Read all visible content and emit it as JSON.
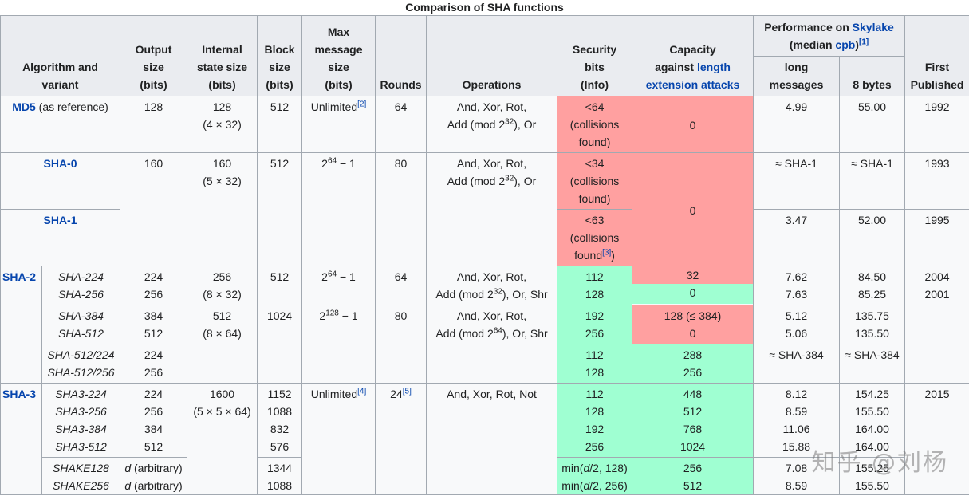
{
  "caption": "Comparison of SHA functions",
  "headers": {
    "alg_line1": "Algorithm and",
    "alg_line2": "variant",
    "out_line1": "Output",
    "out_line2": "size",
    "out_line3": "(bits)",
    "int_line1": "Internal",
    "int_line2": "state size",
    "int_line3": "(bits)",
    "blk_line1": "Block",
    "blk_line2": "size",
    "blk_line3": "(bits)",
    "max_line1": "Max",
    "max_line2": "message",
    "max_line3": "size",
    "max_line4": "(bits)",
    "rounds": "Rounds",
    "operations": "Operations",
    "sec_line1": "Security",
    "sec_line2": "bits",
    "sec_line3": "(Info)",
    "cap_line1": "Capacity",
    "cap_line2_pre": "against ",
    "cap_line2_link": "length",
    "cap_line3_link": "extension attacks",
    "perf_pre": "Performance on ",
    "perf_link": "Skylake",
    "perf_line2_pre": "(median ",
    "perf_line2_link": "cpb",
    "perf_line2_post": ")",
    "perf_ref": "[1]",
    "long_line1": "long",
    "long_line2": "messages",
    "bytes8": "8 bytes",
    "first_line1": "First",
    "first_line2": "Published"
  },
  "md5": {
    "name": "MD5",
    "note": " (as reference)",
    "out": "128",
    "int1": "128",
    "int2": "(4 × 32)",
    "blk": "512",
    "max": "Unlimited",
    "max_ref": "[2]",
    "rounds": "64",
    "ops1": "And, Xor, Rot,",
    "ops2_pre": "Add (mod 2",
    "ops2_sup": "32",
    "ops2_post": "), Or",
    "sec1": "<64",
    "sec2": "(collisions",
    "sec3": "found)",
    "cap": "0",
    "long": "4.99",
    "b8": "55.00",
    "year": "1992"
  },
  "sha0": {
    "name": "SHA-0",
    "out": "160",
    "int1": "160",
    "int2": "(5 × 32)",
    "blk": "512",
    "max_base": "2",
    "max_sup": "64",
    "max_post": " − 1",
    "rounds": "80",
    "ops1": "And, Xor, Rot,",
    "ops2_pre": "Add (mod 2",
    "ops2_sup": "32",
    "ops2_post": "), Or",
    "sec1": "<34",
    "sec2": "(collisions",
    "sec3": "found)",
    "cap": "0",
    "long": "≈ SHA-1",
    "b8": "≈ SHA-1",
    "year": "1993"
  },
  "sha1": {
    "name": "SHA-1",
    "sec1": "<63",
    "sec2": "(collisions",
    "sec3": "found",
    "sec_ref": "[3]",
    "sec3_post": ")",
    "long": "3.47",
    "b8": "52.00",
    "year": "1995"
  },
  "sha2": {
    "family": "SHA-2",
    "g1": {
      "v1": "SHA-224",
      "v2": "SHA-256",
      "out1": "224",
      "out2": "256",
      "int1": "256",
      "int2": "(8 × 32)",
      "blk": "512",
      "max_base": "2",
      "max_sup": "64",
      "max_post": " − 1",
      "rounds": "64",
      "ops1": "And, Xor, Rot,",
      "ops2_pre": "Add (mod 2",
      "ops2_sup": "32",
      "ops2_post": "), Or, Shr",
      "sec1": "112",
      "sec2": "128",
      "cap1": "32",
      "cap2": "0",
      "long1": "7.62",
      "long2": "7.63",
      "b81": "84.50",
      "b82": "85.25",
      "year1": "2004",
      "year2": "2001"
    },
    "g2": {
      "v1": "SHA-384",
      "v2": "SHA-512",
      "out1": "384",
      "out2": "512",
      "int1": "512",
      "int2": "(8 × 64)",
      "blk": "1024",
      "max_base": "2",
      "max_sup": "128",
      "max_post": " − 1",
      "rounds": "80",
      "ops1": "And, Xor, Rot,",
      "ops2_pre": "Add (mod 2",
      "ops2_sup": "64",
      "ops2_post": "), Or, Shr",
      "sec1": "192",
      "sec2": "256",
      "cap1": "128 (≤ 384)",
      "cap2": "0",
      "long1": "5.12",
      "long2": "5.06",
      "b81": "135.75",
      "b82": "135.50"
    },
    "g3": {
      "v1": "SHA-512/224",
      "v2": "SHA-512/256",
      "out1": "224",
      "out2": "256",
      "sec1": "112",
      "sec2": "128",
      "cap1": "288",
      "cap2": "256",
      "long": "≈ SHA-384",
      "b8": "≈ SHA-384"
    }
  },
  "sha3": {
    "family": "SHA-3",
    "g1": {
      "v1": "SHA3-224",
      "v2": "SHA3-256",
      "v3": "SHA3-384",
      "v4": "SHA3-512",
      "out1": "224",
      "out2": "256",
      "out3": "384",
      "out4": "512",
      "int1": "1600",
      "int2": "(5 × 5 × 64)",
      "blk1": "1152",
      "blk2": "1088",
      "blk3": "832",
      "blk4": "576",
      "max": "Unlimited",
      "max_ref": "[4]",
      "rounds": "24",
      "rounds_ref": "[5]",
      "ops": "And, Xor, Rot, Not",
      "sec1": "112",
      "sec2": "128",
      "sec3": "192",
      "sec4": "256",
      "cap1": "448",
      "cap2": "512",
      "cap3": "768",
      "cap4": "1024",
      "long1": "8.12",
      "long2": "8.59",
      "long3": "11.06",
      "long4": "15.88",
      "b81": "154.25",
      "b82": "155.50",
      "b83": "164.00",
      "b84": "164.00",
      "year": "2015"
    },
    "g2": {
      "v1": "SHAKE128",
      "v2": "SHAKE256",
      "out_var": "d",
      "out_note": " (arbitrary)",
      "blk1": "1344",
      "blk2": "1088",
      "sec1_pre": "min(",
      "sec1_var": "d",
      "sec1_post": "/2, 128)",
      "sec2_pre": "min(",
      "sec2_var": "d",
      "sec2_post": "/2, 256)",
      "cap1": "256",
      "cap2": "512",
      "long1": "7.08",
      "long2": "8.59",
      "b81": "155.25",
      "b82": "155.50"
    }
  },
  "watermark": "知乎 @刘杨",
  "colors": {
    "header_bg": "#eaecf0",
    "cell_bg": "#f8f9fa",
    "bad_red": "#ffa0a0",
    "good_green": "#9fffd2",
    "link_blue": "#0645ad",
    "border": "#a2a9b1"
  }
}
